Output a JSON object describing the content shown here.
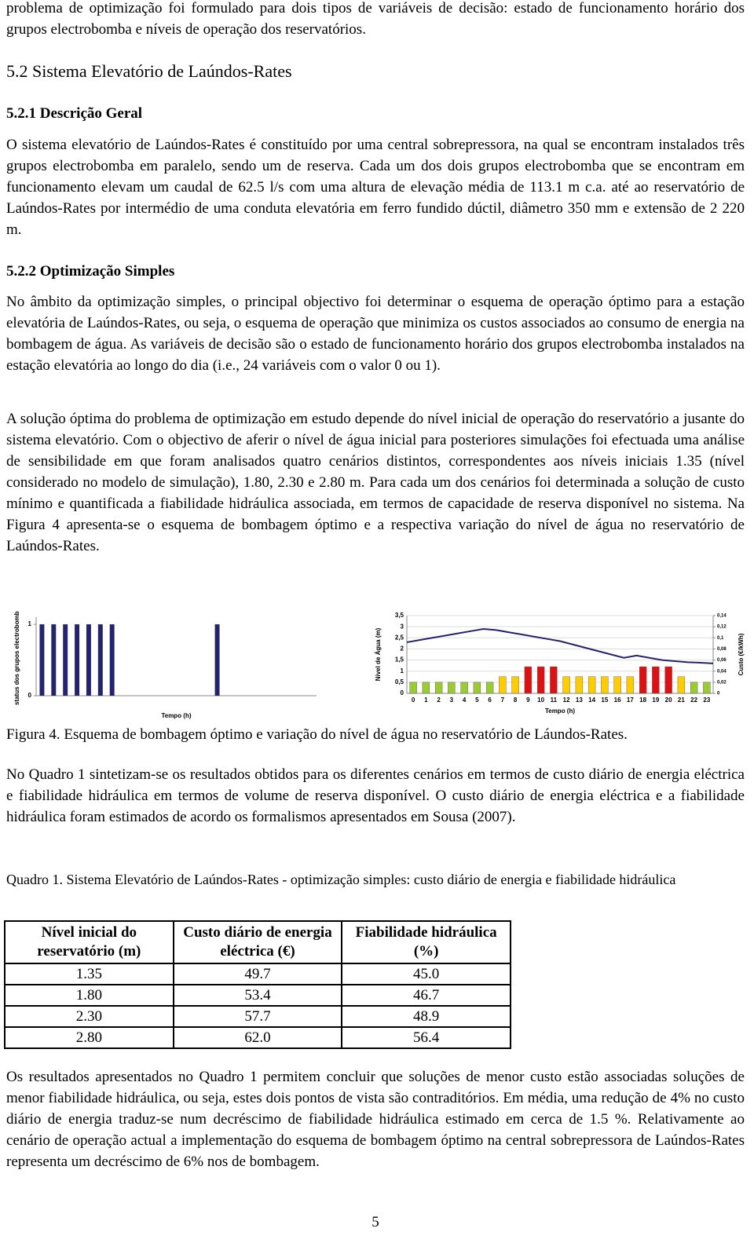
{
  "intro": "problema de optimização foi formulado para dois tipos de variáveis de decisão: estado de funcionamento horário dos grupos electrobomba e níveis de operação dos reservatórios.",
  "heading": "5.2 Sistema Elevatório de Laúndos-Rates",
  "sub1": {
    "title": "5.2.1 Descrição Geral",
    "paragraph": "O sistema elevatório de Laúndos-Rates é constituído por uma central sobrepressora, na qual se encontram instalados três grupos electrobomba em paralelo, sendo um de reserva. Cada um dos dois grupos electrobomba que se encontram em funcionamento elevam um caudal de 62.5 l/s com uma altura de elevação média de 113.1 m c.a. até ao reservatório de Laúndos-Rates por intermédio de uma conduta elevatória em ferro fundido dúctil, diâmetro 350 mm e extensão de 2 220 m."
  },
  "sub2": {
    "title": "5.2.2 Optimização Simples",
    "paragraphs": [
      "No âmbito da optimização simples, o principal objectivo foi determinar o esquema de operação óptimo para a estação elevatória de Laúndos-Rates, ou seja, o esquema de operação que minimiza os custos associados ao consumo de energia na bombagem de água. As variáveis de decisão são o estado de funcionamento horário dos grupos electrobomba instalados na estação elevatória ao longo do dia (i.e., 24 variáveis com o valor 0 ou 1).",
      "A solução óptima do problema de optimização em estudo depende do nível inicial de operação do reservatório a jusante do sistema elevatório. Com o objectivo de aferir o nível de água inicial para posteriores simulações foi efectuada uma análise de sensibilidade em que foram analisados quatro cenários distintos, correspondentes aos níveis iniciais 1.35 (nível considerado no modelo de simulação), 1.80, 2.30 e 2.80 m. Para cada um dos cenários foi determinada a solução de custo mínimo e quantificada a fiabilidade hidráulica associada, em termos de capacidade de reserva disponível no sistema. Na Figura 4 apresenta-se o esquema de bombagem óptimo e a respectiva variação do nível de água no reservatório de Laúndos-Rates."
    ]
  },
  "chart_data": [
    {
      "type": "bar",
      "y_label": "status dos grupos electrobomba",
      "x_label": "Tempo (h)",
      "values": [
        1,
        1,
        1,
        1,
        1,
        1,
        1,
        0,
        0,
        0,
        0,
        0,
        0,
        0,
        0,
        1,
        0,
        0,
        0,
        0,
        0,
        0,
        0,
        0
      ],
      "color": "#24246e",
      "ylim": [
        0,
        1.1
      ],
      "yticks": [
        0,
        1
      ]
    },
    {
      "type": "bar_line",
      "x_label": "Tempo (h)",
      "y_label": "Nível de Água (m)",
      "y2_label": "Custo (€/kWh)",
      "xlim": [
        0,
        24
      ],
      "xticks": [
        0,
        1,
        2,
        3,
        4,
        5,
        6,
        7,
        8,
        9,
        10,
        11,
        12,
        13,
        14,
        15,
        16,
        17,
        18,
        19,
        20,
        21,
        22,
        23
      ],
      "ylim": [
        0,
        3.5
      ],
      "yticks": [
        0,
        {
          "value": 0.5,
          "label": "0,5"
        },
        1,
        {
          "value": 1.5,
          "label": "1,5"
        },
        2,
        {
          "value": 2.5,
          "label": "2,5"
        },
        3,
        {
          "value": 3.5,
          "label": "3,5"
        }
      ],
      "y2lim": [
        0,
        0.14
      ],
      "y2ticks": [
        0,
        {
          "value": 0.02,
          "label": "0,02"
        },
        {
          "value": 0.04,
          "label": "0,04"
        },
        {
          "value": 0.06,
          "label": "0,06"
        },
        {
          "value": 0.08,
          "label": "0,08"
        },
        {
          "value": 0.1,
          "label": "0,1"
        },
        {
          "value": 0.12,
          "label": "0,12"
        },
        {
          "value": 0.14,
          "label": "0,14"
        }
      ],
      "series": [
        {
          "kind": "bar",
          "axis": "y2",
          "x": [
            0,
            1,
            2,
            3,
            4,
            5,
            6,
            7,
            8,
            9,
            10,
            11,
            12,
            13,
            14,
            15,
            16,
            17,
            18,
            19,
            20,
            21,
            22,
            23
          ],
          "values": [
            0.02,
            0.02,
            0.02,
            0.02,
            0.02,
            0.02,
            0.02,
            0.03,
            0.03,
            0.048,
            0.048,
            0.048,
            0.03,
            0.03,
            0.03,
            0.03,
            0.03,
            0.03,
            0.048,
            0.048,
            0.048,
            0.03,
            0.02,
            0.02
          ],
          "colors": [
            "#99cc33",
            "#99cc33",
            "#99cc33",
            "#99cc33",
            "#99cc33",
            "#99cc33",
            "#99cc33",
            "#ffcc00",
            "#ffcc00",
            "#dd1111",
            "#dd1111",
            "#dd1111",
            "#ffcc00",
            "#ffcc00",
            "#ffcc00",
            "#ffcc00",
            "#ffcc00",
            "#ffcc00",
            "#dd1111",
            "#dd1111",
            "#dd1111",
            "#ffcc00",
            "#99cc33",
            "#99cc33"
          ]
        },
        {
          "kind": "line",
          "color": "#24246e",
          "x": [
            0,
            1,
            2,
            3,
            4,
            5,
            6,
            7,
            8,
            9,
            10,
            11,
            12,
            13,
            14,
            15,
            16,
            17,
            18,
            19,
            20,
            21,
            22,
            23,
            24
          ],
          "values": [
            2.3,
            2.4,
            2.5,
            2.6,
            2.7,
            2.8,
            2.9,
            2.85,
            2.75,
            2.65,
            2.55,
            2.45,
            2.35,
            2.2,
            2.05,
            1.9,
            1.75,
            1.6,
            1.7,
            1.6,
            1.5,
            1.45,
            1.4,
            1.38,
            1.35
          ]
        }
      ]
    }
  ],
  "figure_caption": "Figura 4. Esquema de bombagem óptimo e variação do nível de água no reservatório de Láundos-Rates.",
  "after_figure": "No Quadro 1 sintetizam-se os resultados obtidos para os diferentes cenários em termos de custo diário de energia eléctrica e fiabilidade hidráulica em termos de volume de reserva disponível. O custo diário de energia eléctrica e a fiabilidade hidráulica foram estimados de acordo os formalismos apresentados em Sousa (2007).",
  "table": {
    "caption": "Quadro 1. Sistema Elevatório de Laúndos-Rates - optimização simples: custo diário de energia e fiabilidade hidráulica",
    "header": [
      "Nível inicial do reservatório (m)",
      "Custo diário de energia eléctrica (€)",
      "Fiabilidade hidráulica (%)"
    ],
    "rows": [
      [
        "1.35",
        "49.7",
        "45.0"
      ],
      [
        "1.80",
        "53.4",
        "46.7"
      ],
      [
        "2.30",
        "57.7",
        "48.9"
      ],
      [
        "2.80",
        "62.0",
        "56.4"
      ]
    ]
  },
  "closing": "Os resultados apresentados no Quadro 1 permitem concluir que soluções de menor custo estão associadas soluções de menor fiabilidade hidráulica, ou seja, estes dois pontos de vista são contraditórios. Em média, uma redução de 4% no custo diário de energia traduz-se num decréscimo de fiabilidade hidráulica estimado em cerca de 1.5 %. Relativamente ao cenário de operação actual a implementação do esquema de bombagem óptimo na central sobrepressora de Laúndos-Rates representa um decréscimo de 6% nos de bombagem.",
  "page_number": "5"
}
